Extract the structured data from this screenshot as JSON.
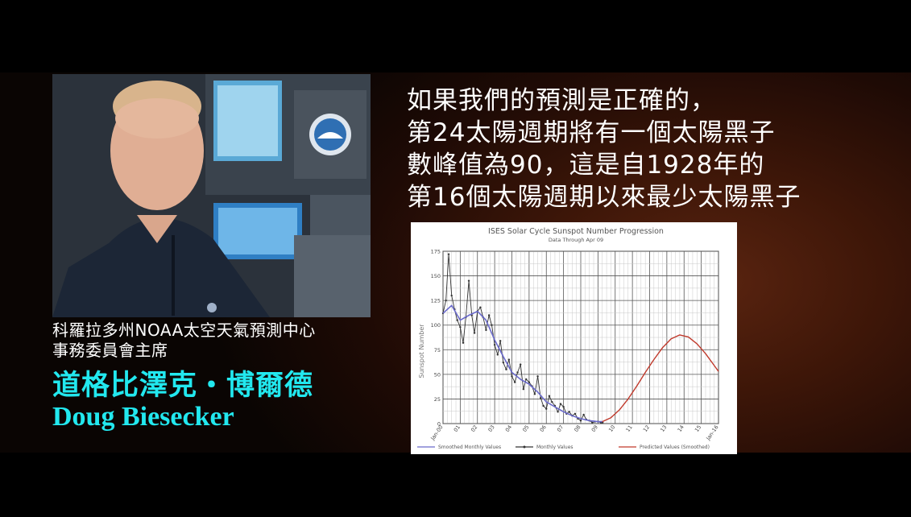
{
  "quote_lines": [
    "如果我們的預測是正確的，",
    "第24太陽週期將有一個太陽黑子",
    "數峰值為90，這是自1928年的",
    "第16個太陽週期以來最少太陽黑子"
  ],
  "speaker": {
    "role_line1": "科羅拉多州NOAA太空天氣預測中心",
    "role_line2": "事務委員會主席",
    "name_zh": "道格比澤克‧博爾德",
    "name_en": "Doug Biesecker"
  },
  "colors": {
    "name_accent": "#22e8ef",
    "monthly_series": "#333333",
    "smoothed_series": "#6a6acb",
    "predicted_series": "#c0392b"
  },
  "chart_data": {
    "type": "line",
    "title": "ISES Solar Cycle Sunspot Number Progression",
    "subtitle": "Data Through Apr 09",
    "ylabel": "Sunspot Number",
    "xlabel": "",
    "ylim": [
      0,
      175
    ],
    "yticks": [
      0,
      25,
      50,
      75,
      100,
      125,
      150,
      175
    ],
    "xlim": [
      2000,
      2016
    ],
    "xticks": [
      2000,
      2001,
      2002,
      2003,
      2004,
      2005,
      2006,
      2007,
      2008,
      2009,
      2010,
      2011,
      2012,
      2013,
      2014,
      2015,
      2016
    ],
    "xtick_labels": [
      "Jan-00",
      "01",
      "02",
      "03",
      "04",
      "05",
      "06",
      "07",
      "08",
      "09",
      "10",
      "11",
      "12",
      "13",
      "14",
      "15",
      "Jan-16"
    ],
    "grid": true,
    "legend": {
      "placement": "bottom",
      "entries": [
        "Smoothed Monthly Values",
        "Monthly Values",
        "Predicted Values (Smoothed)"
      ]
    },
    "series": [
      {
        "name": "Monthly Values",
        "x": [
          2000.0,
          2000.17,
          2000.33,
          2000.5,
          2000.67,
          2000.83,
          2001.0,
          2001.17,
          2001.33,
          2001.5,
          2001.67,
          2001.83,
          2002.0,
          2002.17,
          2002.33,
          2002.5,
          2002.67,
          2002.83,
          2003.0,
          2003.17,
          2003.33,
          2003.5,
          2003.67,
          2003.83,
          2004.0,
          2004.17,
          2004.33,
          2004.5,
          2004.67,
          2004.83,
          2005.0,
          2005.17,
          2005.33,
          2005.5,
          2005.67,
          2005.83,
          2006.0,
          2006.17,
          2006.33,
          2006.5,
          2006.67,
          2006.83,
          2007.0,
          2007.17,
          2007.33,
          2007.5,
          2007.67,
          2007.83,
          2008.0,
          2008.17,
          2008.33,
          2008.5,
          2008.67,
          2008.83,
          2009.0,
          2009.17,
          2009.27
        ],
        "values": [
          112,
          125,
          172,
          130,
          116,
          105,
          98,
          82,
          108,
          145,
          110,
          92,
          114,
          118,
          108,
          95,
          110,
          100,
          80,
          70,
          84,
          62,
          55,
          65,
          48,
          42,
          52,
          60,
          35,
          45,
          42,
          38,
          30,
          48,
          26,
          18,
          15,
          28,
          22,
          18,
          12,
          20,
          17,
          10,
          12,
          8,
          10,
          5,
          3,
          9,
          4,
          3,
          1,
          2,
          2,
          1,
          1
        ]
      },
      {
        "name": "Smoothed Monthly Values",
        "x": [
          2000.0,
          2000.5,
          2001.0,
          2001.5,
          2002.0,
          2002.5,
          2003.0,
          2003.5,
          2004.0,
          2004.5,
          2005.0,
          2005.5,
          2006.0,
          2006.5,
          2007.0,
          2007.5,
          2008.0,
          2008.5,
          2009.0,
          2009.27
        ],
        "values": [
          112,
          120,
          105,
          110,
          114,
          105,
          85,
          68,
          52,
          45,
          40,
          32,
          22,
          17,
          12,
          8,
          5,
          3,
          2,
          2
        ]
      },
      {
        "name": "Predicted Values (Smoothed)",
        "x": [
          2009.25,
          2009.75,
          2010.25,
          2010.75,
          2011.25,
          2011.75,
          2012.25,
          2012.75,
          2013.25,
          2013.75,
          2014.25,
          2014.75,
          2015.25,
          2015.75,
          2016.0
        ],
        "values": [
          2,
          6,
          14,
          25,
          38,
          52,
          65,
          77,
          86,
          90,
          88,
          81,
          71,
          59,
          53
        ]
      }
    ]
  }
}
